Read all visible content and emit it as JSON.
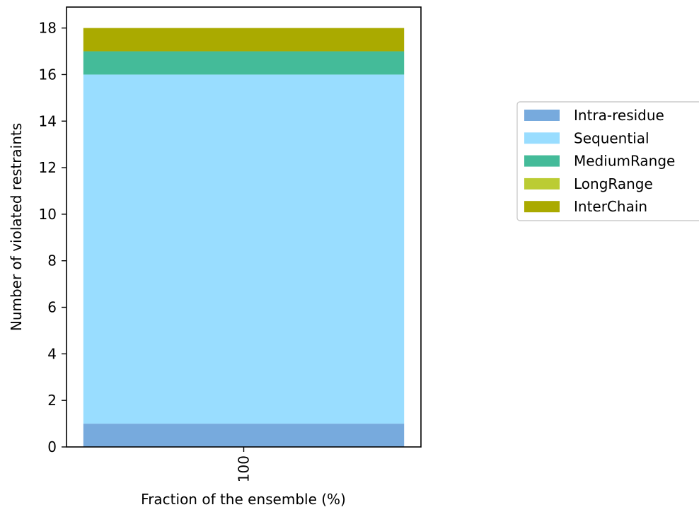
{
  "chart_data": {
    "type": "bar",
    "stacked": true,
    "categories": [
      "100"
    ],
    "series": [
      {
        "name": "Intra-residue",
        "values": [
          1
        ],
        "color": "#77aadd"
      },
      {
        "name": "Sequential",
        "values": [
          15
        ],
        "color": "#99ddff"
      },
      {
        "name": "MediumRange",
        "values": [
          1
        ],
        "color": "#44bb99"
      },
      {
        "name": "LongRange",
        "values": [
          0
        ],
        "color": "#bbcc33"
      },
      {
        "name": "InterChain",
        "values": [
          1
        ],
        "color": "#aaaa00"
      }
    ],
    "xlabel": "Fraction of the ensemble (%)",
    "ylabel": "Number of violated restraints",
    "ylim": [
      0,
      18.9
    ],
    "yticks": [
      0,
      2,
      4,
      6,
      8,
      10,
      12,
      14,
      16,
      18
    ],
    "x_tick_rotation": 90,
    "grid": false,
    "legend_position": "right, outside plot area"
  }
}
